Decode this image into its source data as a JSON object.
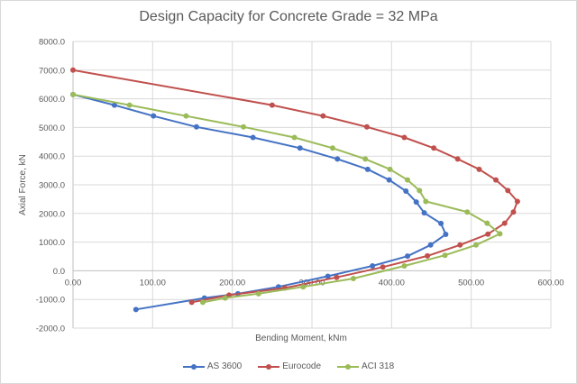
{
  "chart_data": {
    "type": "line",
    "title": "Design Capacity for Concrete Grade = 32 MPa",
    "xlabel": "Bending Moment,  kNm",
    "ylabel": "Axial Force, kN",
    "xlim": [
      0,
      600
    ],
    "ylim": [
      -2000,
      8000
    ],
    "xticks": [
      "0.00",
      "100.00",
      "200.00",
      "300.00",
      "400.00",
      "500.00",
      "600.00"
    ],
    "yticks": [
      "8000.0",
      "7000.0",
      "6000.0",
      "5000.0",
      "4000.0",
      "3000.0",
      "2000.0",
      "1000.0",
      "0.0",
      "-1000.0",
      "-2000.0"
    ],
    "grid": true,
    "legend_position": "bottom",
    "series": [
      {
        "name": "AS 3600",
        "color": "#4472c4",
        "points": [
          [
            0,
            6150
          ],
          [
            52,
            5780
          ],
          [
            101,
            5400
          ],
          [
            155,
            5020
          ],
          [
            226,
            4650
          ],
          [
            285,
            4280
          ],
          [
            332,
            3900
          ],
          [
            370,
            3540
          ],
          [
            397,
            3170
          ],
          [
            418,
            2780
          ],
          [
            431,
            2400
          ],
          [
            441,
            2020
          ],
          [
            462,
            1650
          ],
          [
            468,
            1270
          ],
          [
            449,
            900
          ],
          [
            420,
            510
          ],
          [
            376,
            170
          ],
          [
            320,
            -190
          ],
          [
            258,
            -560
          ],
          [
            207,
            -800
          ],
          [
            165,
            -950
          ],
          [
            79,
            -1350
          ]
        ]
      },
      {
        "name": "Eurocode",
        "color": "#c0504d",
        "points": [
          [
            0,
            7000
          ],
          [
            250,
            5780
          ],
          [
            314,
            5400
          ],
          [
            369,
            5020
          ],
          [
            416,
            4650
          ],
          [
            453,
            4280
          ],
          [
            483,
            3900
          ],
          [
            510,
            3540
          ],
          [
            531,
            3170
          ],
          [
            546,
            2800
          ],
          [
            558,
            2420
          ],
          [
            553,
            2050
          ],
          [
            542,
            1660
          ],
          [
            521,
            1280
          ],
          [
            486,
            900
          ],
          [
            445,
            520
          ],
          [
            389,
            130
          ],
          [
            331,
            -230
          ],
          [
            266,
            -600
          ],
          [
            196,
            -850
          ],
          [
            149,
            -1100
          ]
        ]
      },
      {
        "name": "ACI 318",
        "color": "#9bbb59",
        "points": [
          [
            0,
            6150
          ],
          [
            71,
            5780
          ],
          [
            142,
            5400
          ],
          [
            214,
            5020
          ],
          [
            278,
            4650
          ],
          [
            326,
            4280
          ],
          [
            367,
            3900
          ],
          [
            398,
            3540
          ],
          [
            420,
            3170
          ],
          [
            435,
            2800
          ],
          [
            443,
            2420
          ],
          [
            495,
            2050
          ],
          [
            520,
            1660
          ],
          [
            536,
            1290
          ],
          [
            506,
            900
          ],
          [
            467,
            540
          ],
          [
            416,
            170
          ],
          [
            352,
            -270
          ],
          [
            289,
            -560
          ],
          [
            233,
            -800
          ],
          [
            191,
            -950
          ],
          [
            163,
            -1100
          ]
        ]
      }
    ]
  }
}
